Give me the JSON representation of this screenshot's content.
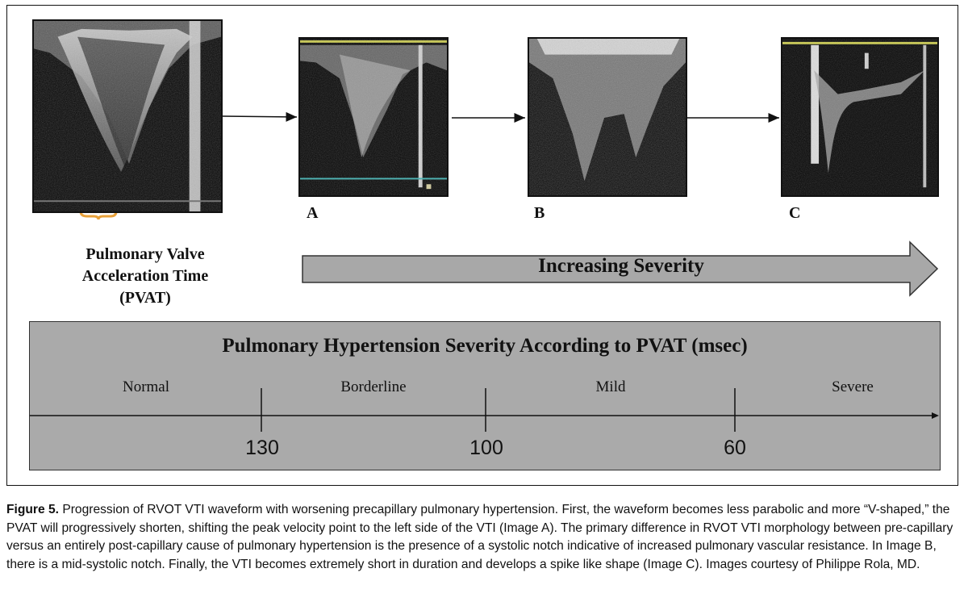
{
  "panels": {
    "a_label": "A",
    "b_label": "B",
    "c_label": "C"
  },
  "pvat_caption": {
    "line1": "Pulmonary Valve",
    "line2": "Acceleration Time",
    "line3": "(PVAT)"
  },
  "severity_arrow": {
    "label": "Increasing Severity"
  },
  "scale": {
    "title": "Pulmonary Hypertension Severity According to PVAT (msec)",
    "categories": [
      "Normal",
      "Borderline",
      "Mild",
      "Severe"
    ],
    "thresholds": [
      "130",
      "100",
      "60"
    ]
  },
  "caption": {
    "figure_label": "Figure 5.",
    "text": " Progression of RVOT VTI waveform with worsening precapillary pulmonary hypertension. First, the waveform becomes less parabolic and more “V-shaped,” the PVAT will progressively shorten, shifting the peak velocity point to the left side of the VTI (Image A). The primary difference in RVOT VTI morphology between pre-capillary versus an entirely post-capillary cause of pulmonary hypertension is the presence of a systolic notch indicative of increased pulmonary vascular resistance. In Image B, there is a mid-systolic notch. Finally, the VTI becomes extremely short in duration and develops a spike like shape (Image C). Images courtesy of Philippe Rola, MD."
  },
  "colors": {
    "pvat_bracket": "#e8a13a",
    "scale_background": "#aaaaaa",
    "arrow_fill": "#a8a8a8",
    "baseline_yellow": "#c8c84a",
    "teal_line": "#4fb3b3"
  }
}
